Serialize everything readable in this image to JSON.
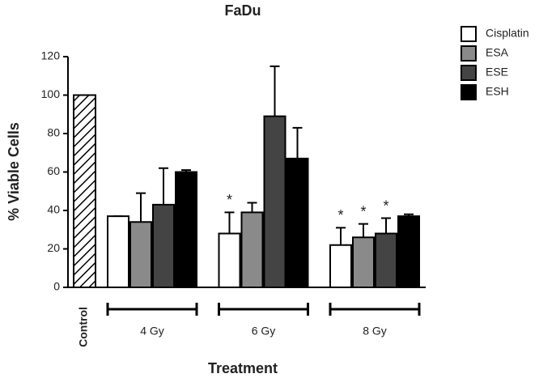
{
  "chart_data": {
    "type": "bar",
    "title": "FaDu",
    "x_label": "Treatment",
    "y_label": "% Viable Cells",
    "control": {
      "name": "Control",
      "value": 100,
      "error": 0
    },
    "categories": [
      "4 Gy",
      "6 Gy",
      "8 Gy"
    ],
    "series": [
      {
        "name": "Cisplatin",
        "color": "#ffffff",
        "values": [
          37,
          28,
          22
        ],
        "errors": [
          0,
          11,
          9
        ],
        "annotations": [
          null,
          "*",
          "*"
        ]
      },
      {
        "name": "ESA",
        "color": "#8a8a8a",
        "values": [
          34,
          39,
          26
        ],
        "errors": [
          15,
          5,
          7
        ],
        "annotations": [
          null,
          null,
          "*"
        ]
      },
      {
        "name": "ESE",
        "color": "#444444",
        "values": [
          43,
          89,
          28
        ],
        "errors": [
          19,
          26,
          8
        ],
        "annotations": [
          null,
          null,
          "*"
        ]
      },
      {
        "name": "ESH",
        "color": "#000000",
        "values": [
          60,
          67,
          37
        ],
        "errors": [
          1,
          16,
          1
        ],
        "annotations": [
          null,
          null,
          null
        ]
      }
    ],
    "ylim": [
      0,
      120
    ],
    "yticks": [
      0,
      20,
      40,
      60,
      80,
      100,
      120
    ]
  }
}
